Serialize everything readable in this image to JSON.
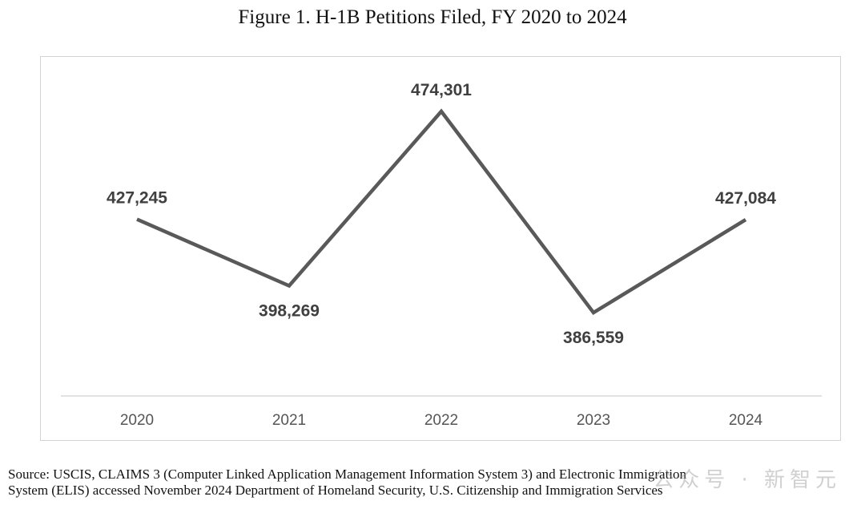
{
  "figure": {
    "title": "Figure 1. H-1B Petitions Filed, FY 2020 to 2024"
  },
  "chart_data": {
    "type": "line",
    "title": "Figure 1. H-1B Petitions Filed, FY 2020 to 2024",
    "categories": [
      "2020",
      "2021",
      "2022",
      "2023",
      "2024"
    ],
    "series": [
      {
        "values": [
          427245,
          398269,
          474301,
          386559,
          427084
        ],
        "labels": [
          "427,245",
          "398,269",
          "474,301",
          "386,559",
          "427,084"
        ]
      }
    ],
    "xlabel": "",
    "ylabel": "",
    "grid": false,
    "legend": "none",
    "line_color": "#595959",
    "label_color": "#404040"
  },
  "source": {
    "line1": "Source: USCIS, CLAIMS 3 (Computer Linked Application Management Information System 3) and Electronic Immigration",
    "line2": "System (ELIS) accessed November 2024 Department of Homeland Security, U.S. Citizenship and Immigration Services"
  },
  "watermark": {
    "text": "公众号 · 新智元"
  }
}
